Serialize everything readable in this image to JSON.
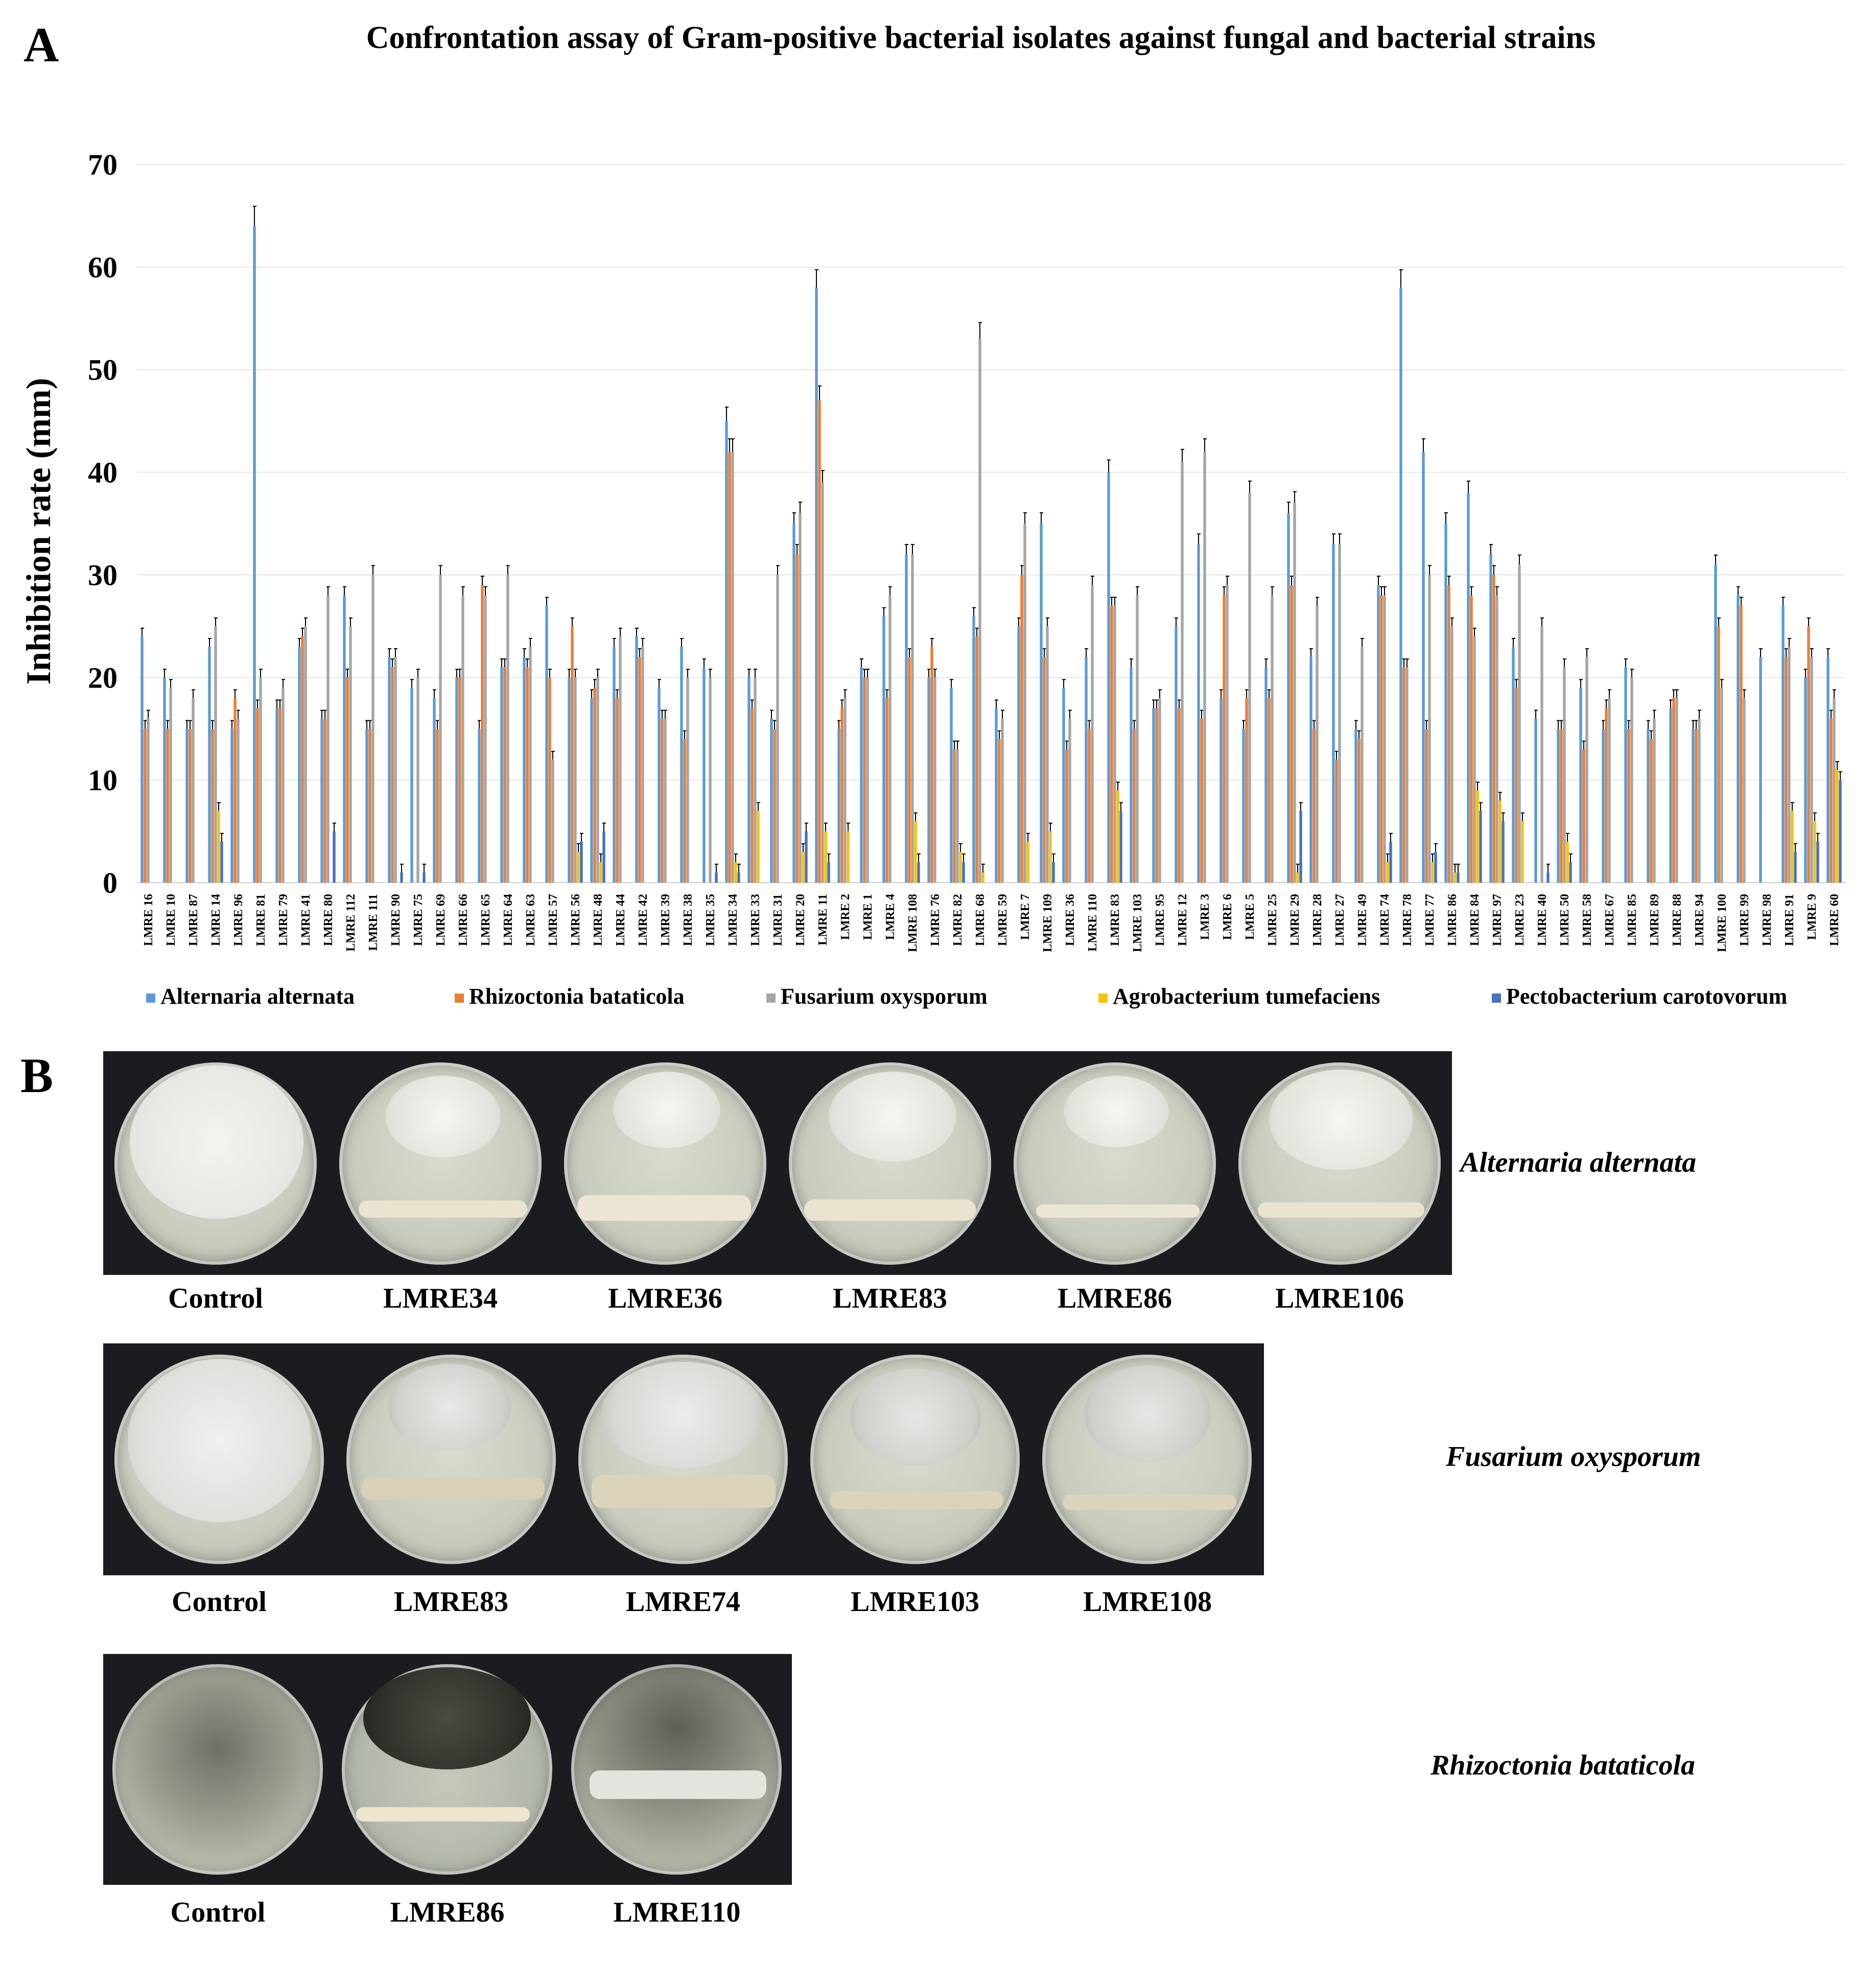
{
  "panel_a_letter": "A",
  "panel_b_letter": "B",
  "colors": {
    "Alternaria alternata": "#5b9bd5",
    "Rhizoctonia bataticola": "#ed7d31",
    "Fusarium oxysporum": "#a5a5a5",
    "Agrobacterium tumefaciens": "#ffc000",
    "Pectobacterium carotovorum": "#4472c4"
  },
  "chart_data": {
    "type": "bar",
    "title": "Confrontation assay of Gram-positive bacterial isolates against fungal and bacterial strains",
    "xlabel": "",
    "ylabel": "Inhibition rate (mm)",
    "ylim": [
      0,
      70
    ],
    "yticks": [
      0,
      10,
      20,
      30,
      40,
      50,
      60,
      70
    ],
    "legend_position": "bottom",
    "error_bars": true,
    "categories": [
      "LMRE 16",
      "LMRE 10",
      "LMRE 87",
      "LMRE 14",
      "LMRE 96",
      "LMRE 81",
      "LMRE 79",
      "LMRE 41",
      "LMRE 80",
      "LMRE 112",
      "LMRE 111",
      "LMRE 90",
      "LMRE 75",
      "LMRE 69",
      "LMRE 66",
      "LMRE 65",
      "LMRE 64",
      "LMRE 63",
      "LMRE 57",
      "LMRE 56",
      "LMRE 48",
      "LMRE 44",
      "LMRE 42",
      "LMRE 39",
      "LMRE 38",
      "LMRE 35",
      "LMRE 34",
      "LMRE 33",
      "LMRE 31",
      "LMRE 20",
      "LMRE 11",
      "LMRE 2",
      "LMRE 1",
      "LMRE 4",
      "LMRE 108",
      "LMRE 76",
      "LMRE 82",
      "LMRE 68",
      "LMRE 59",
      "LMRE 7",
      "LMRE 109",
      "LMRE 36",
      "LMRE 110",
      "LMRE 83",
      "LMRE 103",
      "LMRE 95",
      "LMRE 12",
      "LMRE 3",
      "LMRE 6",
      "LMRE 5",
      "LMRE 25",
      "LMRE 29",
      "LMRE 28",
      "LMRE 27",
      "LMRE 49",
      "LMRE 74",
      "LMRE 78",
      "LMRE 77",
      "LMRE 86",
      "LMRE 84",
      "LMRE 97",
      "LMRE 23",
      "LMRE 40",
      "LMRE 50",
      "LMRE 58",
      "LMRE 67",
      "LMRE 85",
      "LMRE 89",
      "LMRE 88",
      "LMRE 94",
      "LMRE 100",
      "LMRE 99",
      "LMRE 98",
      "LMRE 91",
      "LMRE 9",
      "LMRE 60"
    ],
    "series": [
      {
        "name": "Alternaria alternata",
        "values": [
          24,
          20,
          15,
          23,
          15,
          64,
          17,
          23,
          16,
          28,
          15,
          22,
          19,
          18,
          20,
          15,
          21,
          22,
          27,
          20,
          18,
          23,
          24,
          19,
          23,
          21,
          45,
          20,
          16,
          35,
          58,
          15,
          21,
          26,
          32,
          20,
          19,
          26,
          17,
          25,
          35,
          19,
          22,
          40,
          21,
          17,
          25,
          33,
          18,
          15,
          21,
          36,
          22,
          33,
          15,
          29,
          58,
          42,
          35,
          38,
          32,
          23,
          16,
          15,
          19,
          15,
          21,
          15,
          17,
          15,
          31,
          28,
          22,
          27,
          20,
          22
        ]
      },
      {
        "name": "Rhizoctonia bataticola",
        "values": [
          15,
          15,
          15,
          15,
          18,
          17,
          17,
          24,
          16,
          20,
          15,
          21,
          0,
          15,
          20,
          29,
          21,
          21,
          20,
          25,
          19,
          18,
          22,
          16,
          14,
          0,
          42,
          17,
          15,
          32,
          47,
          17,
          20,
          18,
          22,
          23,
          13,
          24,
          14,
          30,
          22,
          13,
          15,
          27,
          15,
          17,
          17,
          16,
          28,
          18,
          18,
          29,
          15,
          12,
          14,
          28,
          21,
          15,
          29,
          28,
          30,
          19,
          0,
          15,
          13,
          17,
          15,
          14,
          18,
          15,
          25,
          27,
          0,
          22,
          25,
          16
        ]
      },
      {
        "name": "Fusarium oxysporum",
        "values": [
          16,
          19,
          18,
          25,
          16,
          20,
          19,
          25,
          28,
          25,
          30,
          22,
          20,
          30,
          28,
          28,
          30,
          23,
          12,
          20,
          20,
          24,
          23,
          16,
          20,
          20,
          42,
          20,
          30,
          36,
          39,
          18,
          20,
          28,
          32,
          20,
          13,
          53,
          16,
          35,
          25,
          16,
          29,
          27,
          28,
          18,
          41,
          42,
          29,
          38,
          28,
          37,
          27,
          33,
          23,
          28,
          21,
          30,
          25,
          24,
          28,
          31,
          25,
          21,
          22,
          18,
          20,
          16,
          18,
          16,
          19,
          18,
          0,
          23,
          22,
          18
        ]
      },
      {
        "name": "Agrobacterium tumefaciens",
        "values": [
          0,
          0,
          0,
          7,
          0,
          0,
          0,
          0,
          0,
          0,
          0,
          0,
          0,
          0,
          0,
          0,
          0,
          0,
          0,
          3,
          2,
          0,
          0,
          0,
          0,
          0,
          2,
          7,
          0,
          3,
          5,
          5,
          0,
          0,
          6,
          0,
          3,
          1,
          0,
          4,
          5,
          0,
          0,
          9,
          0,
          0,
          0,
          0,
          0,
          0,
          0,
          1,
          0,
          0,
          0,
          2,
          0,
          2,
          1,
          9,
          8,
          6,
          0,
          4,
          0,
          0,
          0,
          0,
          0,
          0,
          0,
          0,
          0,
          7,
          6,
          11
        ]
      },
      {
        "name": "Pectobacterium carotovorum",
        "values": [
          0,
          0,
          0,
          4,
          0,
          0,
          0,
          0,
          5,
          0,
          0,
          1,
          1,
          0,
          0,
          0,
          0,
          0,
          0,
          4,
          5,
          0,
          0,
          0,
          0,
          1,
          1,
          0,
          0,
          5,
          2,
          0,
          0,
          0,
          2,
          0,
          2,
          0,
          0,
          0,
          2,
          0,
          0,
          7,
          0,
          0,
          0,
          0,
          0,
          0,
          0,
          7,
          0,
          0,
          0,
          4,
          0,
          3,
          1,
          7,
          6,
          0,
          1,
          2,
          0,
          0,
          0,
          0,
          0,
          0,
          0,
          0,
          0,
          3,
          4,
          10
        ]
      }
    ]
  },
  "panel_b": {
    "rows": [
      {
        "species": "Alternaria alternata",
        "labels": [
          "Control",
          "LMRE34",
          "LMRE36",
          "LMRE83",
          "LMRE86",
          "LMRE106"
        ]
      },
      {
        "species": "Fusarium oxysporum",
        "labels": [
          "Control",
          "LMRE83",
          "LMRE74",
          "LMRE103",
          "LMRE108"
        ]
      },
      {
        "species": "Rhizoctonia bataticola",
        "labels": [
          "Control",
          "LMRE86",
          "LMRE110"
        ]
      }
    ]
  }
}
